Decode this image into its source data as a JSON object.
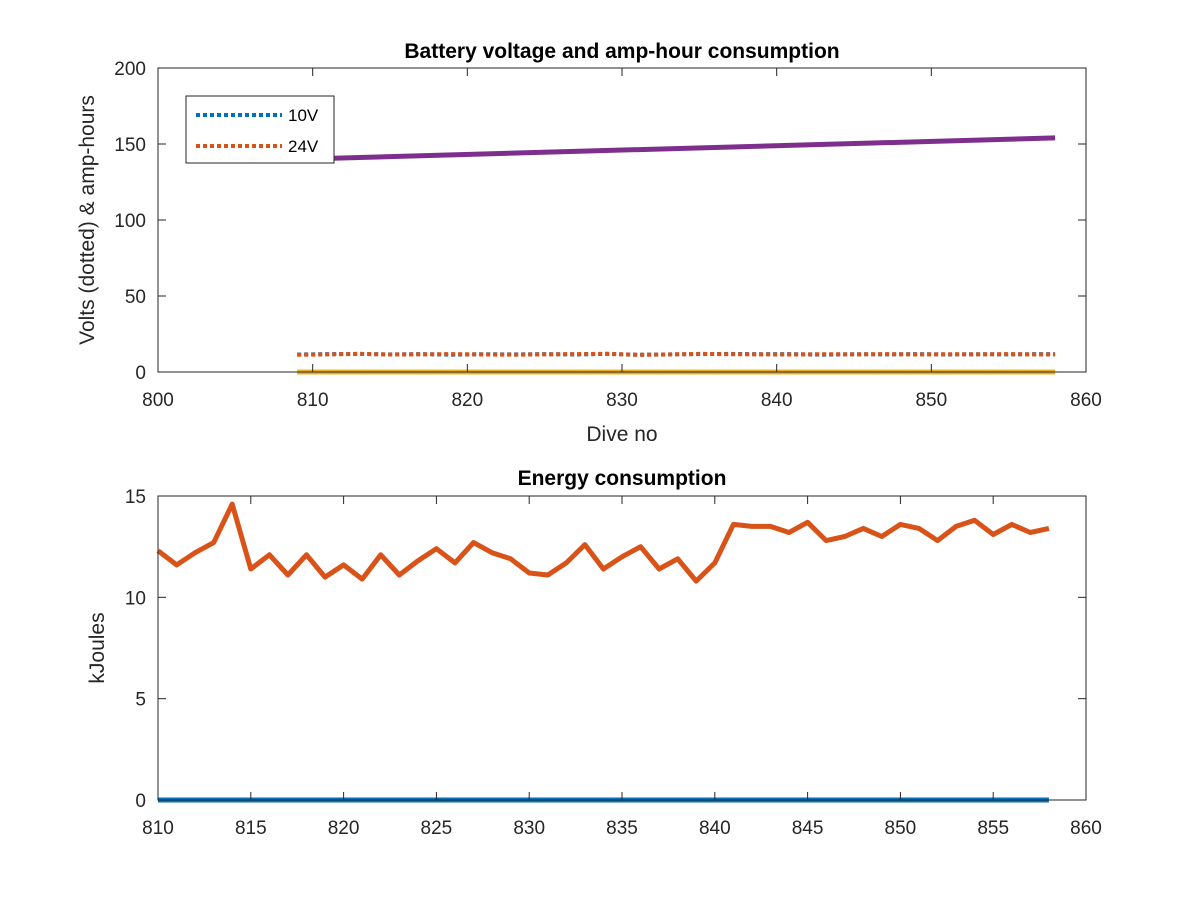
{
  "chart_data": [
    {
      "type": "line",
      "title": "Battery voltage and amp-hour consumption",
      "xlabel": "Dive no",
      "ylabel": "Volts (dotted) & amp-hours",
      "xlim": [
        800,
        860
      ],
      "ylim": [
        0,
        200
      ],
      "xticks": [
        800,
        810,
        820,
        830,
        840,
        850,
        860
      ],
      "yticks": [
        0,
        50,
        100,
        150,
        200
      ],
      "legend_position": "top-left",
      "grid": false,
      "series": [
        {
          "name": "10V",
          "style": "dotted",
          "color": "#0072BD",
          "in_legend": true,
          "x": [
            809,
            811,
            813,
            815,
            817,
            819,
            821,
            823,
            825,
            827,
            829,
            831,
            833,
            835,
            837,
            839,
            841,
            843,
            845,
            847,
            849,
            851,
            853,
            855,
            857,
            858
          ],
          "y": [
            11.5,
            11.8,
            11.9,
            11.6,
            11.8,
            11.4,
            11.7,
            11.6,
            11.8,
            11.5,
            11.9,
            11.3,
            11.6,
            11.8,
            11.9,
            11.7,
            11.8,
            11.4,
            11.7,
            11.6,
            11.8,
            11.5,
            11.7,
            11.6,
            11.8,
            11.7
          ]
        },
        {
          "name": "24V",
          "style": "dotted",
          "color": "#D95319",
          "in_legend": true,
          "x": [
            809,
            811,
            813,
            815,
            817,
            819,
            821,
            823,
            825,
            827,
            829,
            831,
            833,
            835,
            837,
            839,
            841,
            843,
            845,
            847,
            849,
            851,
            853,
            855,
            857,
            858
          ],
          "y": [
            11.3,
            11.6,
            11.9,
            11.5,
            11.6,
            11.8,
            11.5,
            11.4,
            11.6,
            11.8,
            12.0,
            11.3,
            11.5,
            11.9,
            11.7,
            11.6,
            11.5,
            11.7,
            11.6,
            11.8,
            11.5,
            11.7,
            11.6,
            11.8,
            11.5,
            11.6
          ]
        },
        {
          "style": "solid",
          "color": "#EDB120",
          "in_legend": false,
          "x": [
            809,
            858
          ],
          "y": [
            0,
            0
          ]
        },
        {
          "style": "solid",
          "color": "#7E2F8E",
          "in_legend": false,
          "x": [
            809,
            858
          ],
          "y": [
            140,
            154
          ]
        }
      ]
    },
    {
      "type": "line",
      "title": "Energy consumption",
      "xlabel": "",
      "ylabel": "kJoules",
      "xlim": [
        810,
        860
      ],
      "ylim": [
        0,
        15
      ],
      "xticks": [
        810,
        815,
        820,
        825,
        830,
        835,
        840,
        845,
        850,
        855,
        860
      ],
      "yticks": [
        0,
        5,
        10,
        15
      ],
      "grid": false,
      "series": [
        {
          "style": "solid",
          "color": "#0072BD",
          "x": [
            810,
            858
          ],
          "y": [
            0,
            0
          ]
        },
        {
          "style": "solid",
          "color": "#D95319",
          "x": [
            810,
            811,
            812,
            813,
            814,
            815,
            816,
            817,
            818,
            819,
            820,
            821,
            822,
            823,
            824,
            825,
            826,
            827,
            828,
            829,
            830,
            831,
            832,
            833,
            834,
            835,
            836,
            837,
            838,
            839,
            840,
            841,
            842,
            843,
            844,
            845,
            846,
            847,
            848,
            849,
            850,
            851,
            852,
            853,
            854,
            855,
            856,
            857,
            858
          ],
          "y": [
            12.3,
            11.6,
            12.2,
            12.7,
            14.6,
            11.4,
            12.1,
            11.1,
            12.1,
            11.0,
            11.6,
            10.9,
            12.1,
            11.1,
            11.8,
            12.4,
            11.7,
            12.7,
            12.2,
            11.9,
            11.2,
            11.1,
            11.7,
            12.6,
            11.4,
            12.0,
            12.5,
            11.4,
            11.9,
            10.8,
            11.7,
            13.6,
            13.5,
            13.5,
            13.2,
            13.7,
            12.8,
            13.0,
            13.4,
            13.0,
            13.6,
            13.4,
            12.8,
            13.5,
            13.8,
            13.1,
            13.6,
            13.2,
            13.4
          ]
        }
      ]
    }
  ]
}
